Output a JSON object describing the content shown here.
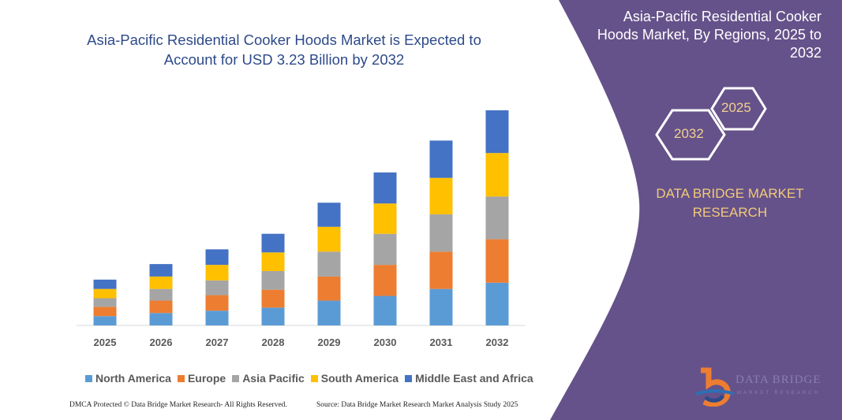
{
  "title": "Asia-Pacific Residential Cooker Hoods Market is Expected to Account for USD 3.23 Billion by 2032",
  "side_panel": {
    "title": "Asia-Pacific Residential Cooker Hoods Market, By Regions, 2025 to 2032",
    "hex_start": "2025",
    "hex_end": "2032",
    "brand": "DATA BRIDGE MARKET RESEARCH",
    "logo_text": "DATA BRIDGE",
    "logo_subtext": "MARKET RESEARCH",
    "panel_color": "#65528a"
  },
  "footer": {
    "left": "DMCA Protected © Data Bridge Market Research- All Rights Reserved.",
    "right": "Source: Data Bridge Market Research Market Analysis Study 2025"
  },
  "chart_data": {
    "type": "bar",
    "stacked": true,
    "categories": [
      "2025",
      "2026",
      "2027",
      "2028",
      "2029",
      "2030",
      "2031",
      "2032"
    ],
    "series": [
      {
        "name": "North America",
        "color": "#5b9bd5",
        "values": [
          12,
          16,
          19,
          23,
          32,
          38,
          47,
          55
        ]
      },
      {
        "name": "Europe",
        "color": "#ed7d31",
        "values": [
          12,
          16,
          20,
          23,
          31,
          40,
          48,
          56
        ]
      },
      {
        "name": "Asia Pacific",
        "color": "#a5a5a5",
        "values": [
          11,
          15,
          19,
          24,
          32,
          40,
          48,
          55
        ]
      },
      {
        "name": "South America",
        "color": "#ffc000",
        "values": [
          12,
          16,
          20,
          24,
          32,
          39,
          47,
          56
        ]
      },
      {
        "name": "Middle East and Africa",
        "color": "#4472c4",
        "values": [
          12,
          16,
          20,
          24,
          31,
          40,
          48,
          55
        ]
      }
    ],
    "ylim": [
      0,
      280
    ],
    "grid": false,
    "legend": "bottom",
    "xlabel": "",
    "ylabel": ""
  }
}
